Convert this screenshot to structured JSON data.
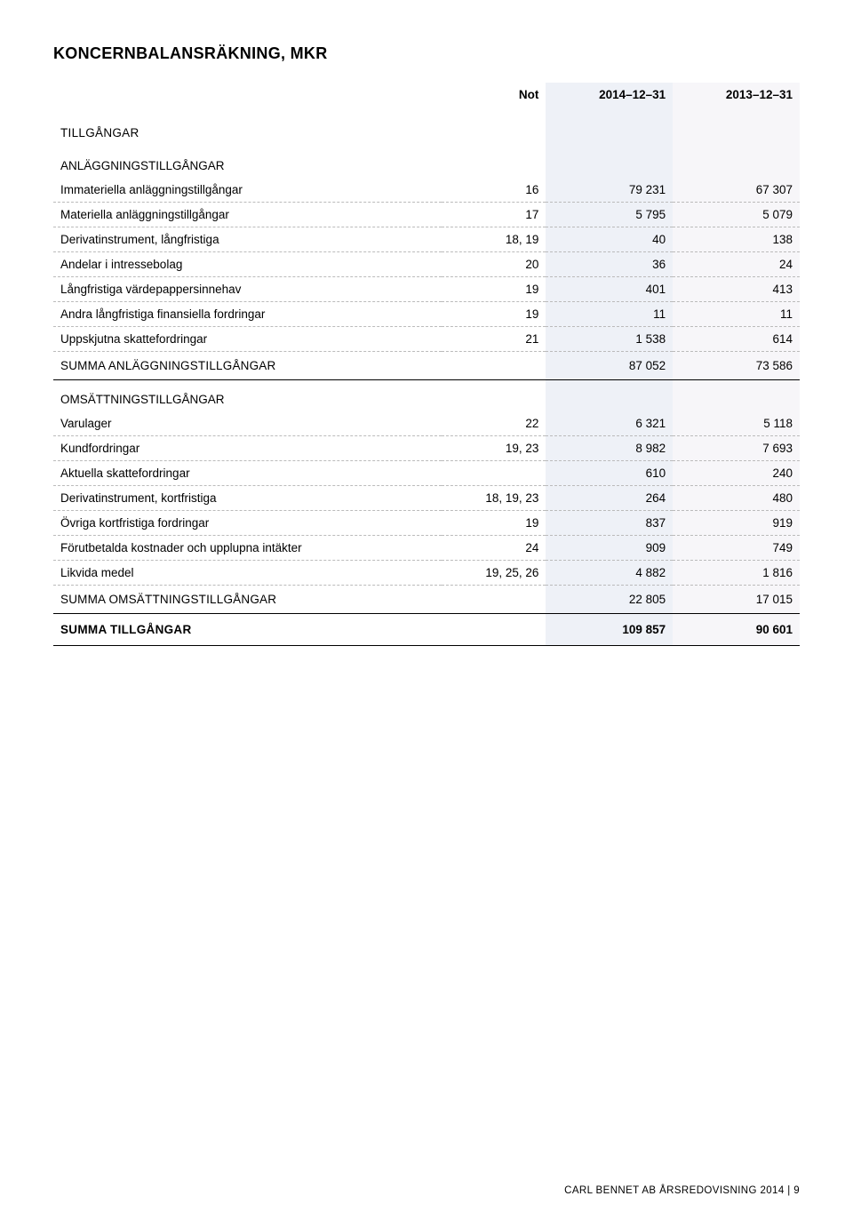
{
  "colors": {
    "col_2014_bg": "#eef1f7",
    "col_2013_bg": "#f7f6f9",
    "dotted_border": "#bbbbbb",
    "solid_border": "#000000",
    "text": "#000000",
    "background": "#ffffff"
  },
  "table": {
    "column_widths_pct": [
      52,
      14,
      17,
      17
    ],
    "font_size_pt": 13.5,
    "title_font_size_pt": 18
  },
  "title": "KONCERNBALANSRÄKNING, MKR",
  "headers": {
    "note": "Not",
    "col1": "2014–12–31",
    "col2": "2013–12–31"
  },
  "footer": "CARL BENNET AB ÅRSREDOVISNING 2014 | 9",
  "sections": {
    "tillgangar": "TILLGÅNGAR",
    "anlagg_head": "ANLÄGGNINGSTILLGÅNGAR",
    "anlagg_rows": [
      {
        "label": "Immateriella anläggningstillgångar",
        "note": "16",
        "c1": "79 231",
        "c2": "67 307"
      },
      {
        "label": "Materiella anläggningstillgångar",
        "note": "17",
        "c1": "5 795",
        "c2": "5 079"
      },
      {
        "label": "Derivatinstrument, långfristiga",
        "note": "18, 19",
        "c1": "40",
        "c2": "138"
      },
      {
        "label": "Andelar i intressebolag",
        "note": "20",
        "c1": "36",
        "c2": "24"
      },
      {
        "label": "Långfristiga värdepappersinnehav",
        "note": "19",
        "c1": "401",
        "c2": "413"
      },
      {
        "label": "Andra långfristiga finansiella fordringar",
        "note": "19",
        "c1": "11",
        "c2": "11"
      },
      {
        "label": "Uppskjutna skattefordringar",
        "note": "21",
        "c1": "1 538",
        "c2": "614"
      }
    ],
    "anlagg_sum": {
      "label": "SUMMA ANLÄGGNINGSTILLGÅNGAR",
      "c1": "87 052",
      "c2": "73 586"
    },
    "oms_head": "OMSÄTTNINGSTILLGÅNGAR",
    "oms_rows": [
      {
        "label": "Varulager",
        "note": "22",
        "c1": "6 321",
        "c2": "5 118"
      },
      {
        "label": "Kundfordringar",
        "note": "19, 23",
        "c1": "8 982",
        "c2": "7 693"
      },
      {
        "label": "Aktuella skattefordringar",
        "note": "",
        "c1": "610",
        "c2": "240"
      },
      {
        "label": "Derivatinstrument, kortfristiga",
        "note": "18, 19, 23",
        "c1": "264",
        "c2": "480"
      },
      {
        "label": "Övriga kortfristiga fordringar",
        "note": "19",
        "c1": "837",
        "c2": "919"
      },
      {
        "label": "Förutbetalda kostnader och upplupna intäkter",
        "note": "24",
        "c1": "909",
        "c2": "749"
      },
      {
        "label": "Likvida medel",
        "note": "19, 25, 26",
        "c1": "4 882",
        "c2": "1 816"
      }
    ],
    "oms_sum": {
      "label": "SUMMA OMSÄTTNINGSTILLGÅNGAR",
      "c1": "22 805",
      "c2": "17 015"
    },
    "total": {
      "label": "SUMMA TILLGÅNGAR",
      "c1": "109 857",
      "c2": "90 601"
    }
  }
}
